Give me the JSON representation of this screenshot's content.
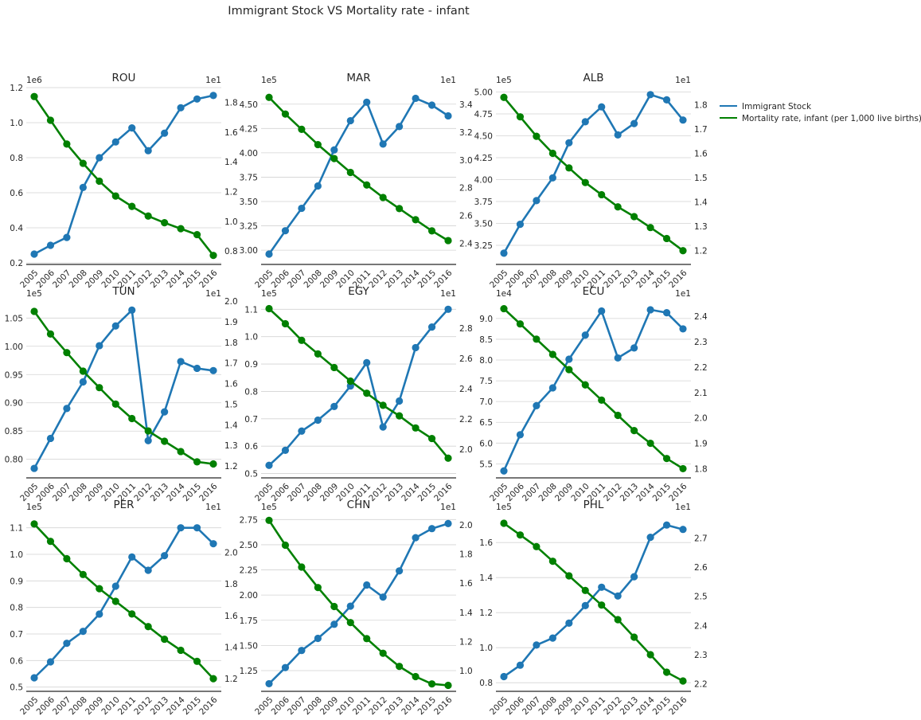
{
  "figure": {
    "title": "Immigrant Stock VS Mortality rate - infant"
  },
  "legend": {
    "placement": "right",
    "entries": [
      {
        "label": "Immigrant Stock",
        "color": "#1f77b4"
      },
      {
        "label": "Mortality rate, infant (per 1,000 live births)",
        "color": "#008000"
      }
    ]
  },
  "colors": {
    "immigrant": "#1f77b4",
    "mortality": "#008000",
    "grid": "#d3d3d3",
    "axis": "#262626"
  },
  "chart_data": [
    {
      "type": "line",
      "title": "ROU",
      "x": [
        "2005",
        "2006",
        "2007",
        "2008",
        "2009",
        "2010",
        "2011",
        "2012",
        "2013",
        "2014",
        "2015",
        "2016"
      ],
      "left": {
        "name": "Immigrant Stock",
        "offset": "1e6",
        "ticks": [
          "0.2",
          "0.4",
          "0.6",
          "0.8",
          "1.0",
          "1.2"
        ],
        "ylim": [
          0.2,
          1.2
        ],
        "values": [
          0.25,
          0.3,
          0.345,
          0.63,
          0.8,
          0.89,
          0.97,
          0.84,
          0.94,
          1.085,
          1.135,
          1.155
        ]
      },
      "right": {
        "name": "Mortality rate, infant (per 1,000 live births)",
        "offset": "1e1",
        "ticks": [
          "0.8",
          "1.0",
          "1.2",
          "1.4",
          "1.6",
          "1.8"
        ],
        "ylim": [
          0.72,
          1.9
        ],
        "values": [
          1.84,
          1.68,
          1.52,
          1.39,
          1.27,
          1.17,
          1.1,
          1.035,
          0.99,
          0.95,
          0.91,
          0.77
        ]
      },
      "grid": true
    },
    {
      "type": "line",
      "title": "MAR",
      "x": [
        "2005",
        "2006",
        "2007",
        "2008",
        "2009",
        "2010",
        "2011",
        "2012",
        "2013",
        "2014",
        "2015",
        "2016"
      ],
      "left": {
        "name": "Immigrant Stock",
        "offset": "1e5",
        "ticks": [
          "3.00",
          "3.25",
          "3.50",
          "3.75",
          "4.00",
          "4.25",
          "4.50"
        ],
        "ylim": [
          2.87,
          4.67
        ],
        "values": [
          2.96,
          3.2,
          3.43,
          3.66,
          4.03,
          4.33,
          4.52,
          4.09,
          4.27,
          4.56,
          4.49,
          4.38
        ]
      },
      "right": {
        "name": "Mortality rate, infant (per 1,000 live births)",
        "offset": "1e1",
        "ticks": [
          "2.4",
          "2.6",
          "2.8",
          "3.0",
          "3.2",
          "3.4"
        ],
        "ylim": [
          2.26,
          3.52
        ],
        "values": [
          3.45,
          3.33,
          3.22,
          3.11,
          3.01,
          2.91,
          2.82,
          2.73,
          2.65,
          2.57,
          2.49,
          2.42
        ]
      },
      "grid": true
    },
    {
      "type": "line",
      "title": "ALB",
      "x": [
        "2005",
        "2006",
        "2007",
        "2008",
        "2009",
        "2010",
        "2011",
        "2012",
        "2013",
        "2014",
        "2015",
        "2016"
      ],
      "left": {
        "name": "Immigrant Stock",
        "offset": "1e5",
        "ticks": [
          "3.25",
          "3.50",
          "3.75",
          "4.00",
          "4.25",
          "4.50",
          "4.75",
          "5.00"
        ],
        "ylim": [
          3.05,
          5.05
        ],
        "values": [
          3.16,
          3.49,
          3.76,
          4.02,
          4.42,
          4.66,
          4.83,
          4.51,
          4.64,
          4.97,
          4.91,
          4.68
        ]
      },
      "right": {
        "name": "Mortality rate, infant (per 1,000 live births)",
        "offset": "1e1",
        "ticks": [
          "1.2",
          "1.3",
          "1.4",
          "1.5",
          "1.6",
          "1.7",
          "1.8"
        ],
        "ylim": [
          1.15,
          1.87
        ],
        "values": [
          1.83,
          1.75,
          1.67,
          1.6,
          1.54,
          1.48,
          1.43,
          1.38,
          1.34,
          1.295,
          1.25,
          1.2
        ]
      },
      "grid": true
    },
    {
      "type": "line",
      "title": "TUN",
      "x": [
        "2005",
        "2006",
        "2007",
        "2008",
        "2009",
        "2010",
        "2011",
        "2012",
        "2013",
        "2014",
        "2015",
        "2016"
      ],
      "left": {
        "name": "Immigrant Stock",
        "offset": "1e5",
        "ticks": [
          "0.80",
          "0.85",
          "0.90",
          "0.95",
          "1.00",
          "1.05"
        ],
        "ylim": [
          0.77,
          1.08
        ],
        "values": [
          0.784,
          0.837,
          0.89,
          0.937,
          1.001,
          1.036,
          1.064,
          0.833,
          0.884,
          0.973,
          0.961,
          0.957
        ]
      },
      "right": {
        "name": "Mortality rate, infant (per 1,000 live births)",
        "offset": "1e1",
        "ticks": [
          "1.2",
          "1.3",
          "1.4",
          "1.5",
          "1.6",
          "1.7",
          "1.8",
          "1.9",
          "2.0"
        ],
        "ylim": [
          1.15,
          2.0
        ],
        "values": [
          1.95,
          1.84,
          1.75,
          1.66,
          1.58,
          1.5,
          1.43,
          1.37,
          1.32,
          1.27,
          1.22,
          1.21
        ]
      },
      "grid": true
    },
    {
      "type": "line",
      "title": "EGY",
      "x": [
        "2005",
        "2006",
        "2007",
        "2008",
        "2009",
        "2010",
        "2011",
        "2012",
        "2013",
        "2014",
        "2015",
        "2016"
      ],
      "left": {
        "name": "Immigrant Stock",
        "offset": "1e5",
        "ticks": [
          "0.5",
          "0.6",
          "0.7",
          "0.8",
          "0.9",
          "1.0",
          "1.1"
        ],
        "ylim": [
          0.49,
          1.13
        ],
        "values": [
          0.53,
          0.585,
          0.655,
          0.695,
          0.745,
          0.82,
          0.905,
          0.67,
          0.765,
          0.96,
          1.035,
          1.1
        ]
      },
      "right": {
        "name": "Mortality rate, infant (per 1,000 live births)",
        "offset": "1e1",
        "ticks": [
          "2.0",
          "2.2",
          "2.4",
          "2.6",
          "2.8"
        ],
        "ylim": [
          1.82,
          2.98
        ],
        "values": [
          2.93,
          2.83,
          2.72,
          2.63,
          2.54,
          2.45,
          2.37,
          2.29,
          2.22,
          2.14,
          2.07,
          1.94
        ]
      },
      "grid": true
    },
    {
      "type": "line",
      "title": "ECU",
      "x": [
        "2005",
        "2006",
        "2007",
        "2008",
        "2009",
        "2010",
        "2011",
        "2012",
        "2013",
        "2014",
        "2015",
        "2016"
      ],
      "left": {
        "name": "Immigrant Stock",
        "offset": "1e4",
        "ticks": [
          "5.5",
          "6.0",
          "6.5",
          "7.0",
          "7.5",
          "8.0",
          "8.5",
          "9.0"
        ],
        "ylim": [
          5.2,
          9.42
        ],
        "values": [
          5.33,
          6.2,
          6.9,
          7.33,
          8.02,
          8.6,
          9.18,
          8.05,
          8.29,
          9.21,
          9.14,
          8.75
        ]
      },
      "right": {
        "name": "Mortality rate, infant (per 1,000 live births)",
        "offset": "1e1",
        "ticks": [
          "1.8",
          "1.9",
          "2.0",
          "2.1",
          "2.2",
          "2.3",
          "2.4"
        ],
        "ylim": [
          1.77,
          2.46
        ],
        "values": [
          2.43,
          2.37,
          2.31,
          2.25,
          2.19,
          2.13,
          2.07,
          2.01,
          1.95,
          1.9,
          1.84,
          1.8
        ]
      },
      "grid": true
    },
    {
      "type": "line",
      "title": "PER",
      "x": [
        "2005",
        "2006",
        "2007",
        "2008",
        "2009",
        "2010",
        "2011",
        "2012",
        "2013",
        "2014",
        "2015",
        "2016"
      ],
      "left": {
        "name": "Immigrant Stock",
        "offset": "1e5",
        "ticks": [
          "0.5",
          "0.6",
          "0.7",
          "0.8",
          "0.9",
          "1.0",
          "1.1"
        ],
        "ylim": [
          0.49,
          1.15
        ],
        "values": [
          0.535,
          0.595,
          0.665,
          0.71,
          0.775,
          0.88,
          0.99,
          0.94,
          0.995,
          1.1,
          1.1,
          1.04
        ]
      },
      "right": {
        "name": "Mortality rate, infant (per 1,000 live births)",
        "offset": "1e1",
        "ticks": [
          "1.2",
          "1.4",
          "1.6",
          "1.8",
          "2.0"
        ],
        "ylim": [
          1.13,
          2.24
        ],
        "values": [
          2.18,
          2.07,
          1.96,
          1.86,
          1.77,
          1.69,
          1.61,
          1.53,
          1.45,
          1.38,
          1.31,
          1.2
        ]
      },
      "grid": true
    },
    {
      "type": "line",
      "title": "CHN",
      "x": [
        "2005",
        "2006",
        "2007",
        "2008",
        "2009",
        "2010",
        "2011",
        "2012",
        "2013",
        "2014",
        "2015",
        "2016"
      ],
      "left": {
        "name": "Immigrant Stock",
        "offset": "1e5",
        "ticks": [
          "1.25",
          "1.50",
          "1.75",
          "2.00",
          "2.25",
          "2.50",
          "2.75"
        ],
        "ylim": [
          1.06,
          2.8
        ],
        "values": [
          1.12,
          1.28,
          1.45,
          1.57,
          1.71,
          1.89,
          2.1,
          1.98,
          2.24,
          2.57,
          2.66,
          2.71
        ]
      },
      "right": {
        "name": "Mortality rate, infant (per 1,000 live births)",
        "offset": "1e1",
        "ticks": [
          "1.0",
          "1.2",
          "1.4",
          "1.6",
          "1.8",
          "2.0"
        ],
        "ylim": [
          0.87,
          2.07
        ],
        "values": [
          2.03,
          1.86,
          1.71,
          1.57,
          1.44,
          1.33,
          1.22,
          1.12,
          1.03,
          0.96,
          0.91,
          0.9
        ]
      },
      "grid": true
    },
    {
      "type": "line",
      "title": "PHL",
      "x": [
        "2005",
        "2006",
        "2007",
        "2008",
        "2009",
        "2010",
        "2011",
        "2012",
        "2013",
        "2014",
        "2015",
        "2016"
      ],
      "left": {
        "name": "Immigrant Stock",
        "offset": "1e5",
        "ticks": [
          "0.8",
          "1.0",
          "1.2",
          "1.4",
          "1.6"
        ],
        "ylim": [
          0.76,
          1.76
        ],
        "values": [
          0.835,
          0.9,
          1.015,
          1.055,
          1.14,
          1.24,
          1.345,
          1.295,
          1.405,
          1.63,
          1.7,
          1.675
        ]
      },
      "right": {
        "name": "Mortality rate, infant (per 1,000 live births)",
        "offset": "1e1",
        "ticks": [
          "2.2",
          "2.3",
          "2.4",
          "2.5",
          "2.6",
          "2.7"
        ],
        "ylim": [
          2.18,
          2.78
        ],
        "values": [
          2.75,
          2.71,
          2.67,
          2.62,
          2.57,
          2.52,
          2.47,
          2.42,
          2.36,
          2.3,
          2.24,
          2.21
        ]
      },
      "grid": true
    }
  ]
}
